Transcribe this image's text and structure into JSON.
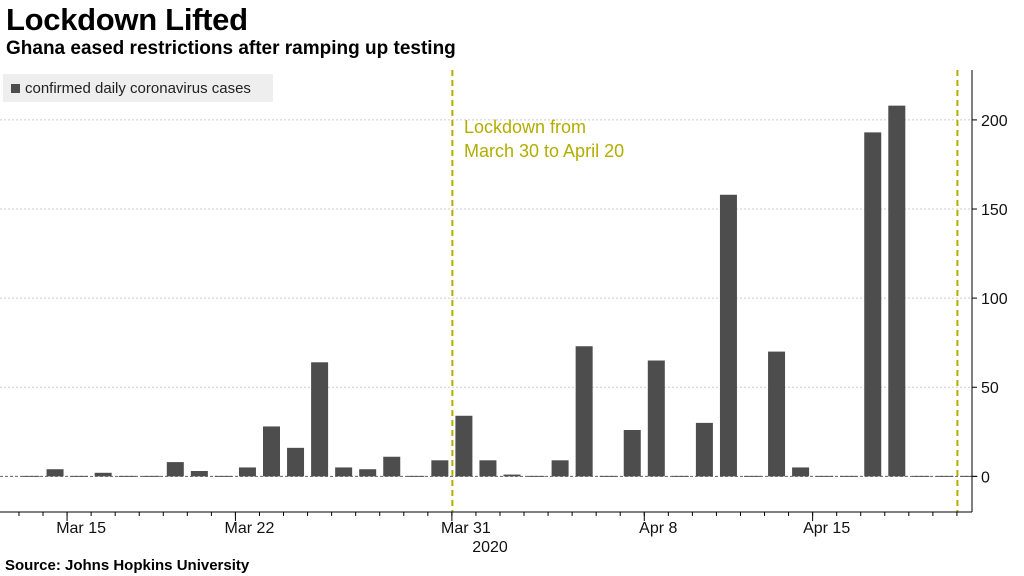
{
  "header": {
    "title": "Lockdown Lifted",
    "subtitle": "Ghana eased restrictions after ramping up testing"
  },
  "footer": {
    "source": "Source: Johns Hopkins University"
  },
  "colors": {
    "bar": "#4d4d4d",
    "annotation": "#b3ad00",
    "grid": "#cccccc"
  },
  "chart_data": {
    "type": "bar",
    "title": "Lockdown Lifted",
    "subtitle": "Ghana eased restrictions after ramping up testing",
    "series": [
      {
        "name": "confirmed daily coronavirus cases",
        "x": [
          "2020-03-13",
          "2020-03-14",
          "2020-03-15",
          "2020-03-16",
          "2020-03-17",
          "2020-03-18",
          "2020-03-19",
          "2020-03-20",
          "2020-03-21",
          "2020-03-22",
          "2020-03-23",
          "2020-03-24",
          "2020-03-25",
          "2020-03-26",
          "2020-03-27",
          "2020-03-28",
          "2020-03-29",
          "2020-03-30",
          "2020-03-31",
          "2020-04-01",
          "2020-04-02",
          "2020-04-03",
          "2020-04-04",
          "2020-04-05",
          "2020-04-06",
          "2020-04-07",
          "2020-04-08",
          "2020-04-09",
          "2020-04-10",
          "2020-04-11",
          "2020-04-12",
          "2020-04-13",
          "2020-04-14",
          "2020-04-15",
          "2020-04-16",
          "2020-04-17",
          "2020-04-18",
          "2020-04-19",
          "2020-04-20",
          "2020-04-21"
        ],
        "values": [
          0,
          4,
          0,
          2,
          0,
          0,
          8,
          3,
          0,
          5,
          28,
          16,
          64,
          5,
          4,
          11,
          0,
          9,
          34,
          9,
          1,
          0,
          9,
          73,
          0,
          26,
          65,
          0,
          30,
          158,
          0,
          70,
          5,
          0,
          0,
          193,
          208,
          0,
          0,
          0
        ]
      }
    ],
    "x_tick_labels": [
      "Mar 15",
      "Mar 22",
      "Mar 31",
      "Apr 8",
      "Apr 15"
    ],
    "x_year_label": "2020",
    "y_ticks": [
      0,
      50,
      100,
      150,
      200
    ],
    "ylim": [
      -20,
      228
    ],
    "y_axis_side": "right",
    "grid": "horizontal dotted",
    "legend": "top-left",
    "annotation": {
      "text_line1": "Lockdown from",
      "text_line2": "March 30 to April 20",
      "start": "2020-03-30",
      "end": "2020-04-20"
    }
  }
}
